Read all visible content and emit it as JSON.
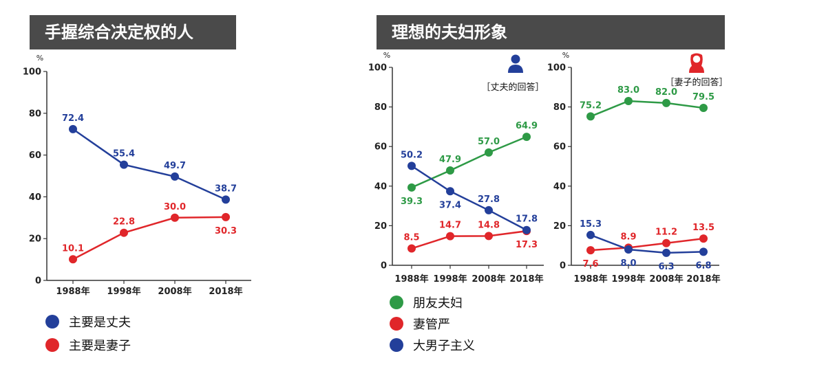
{
  "left_panel": {
    "title": "手握综合决定权的人"
  },
  "right_panel": {
    "title": "理想的夫妇形象"
  },
  "colors": {
    "blue": "#233f9a",
    "red": "#e0262a",
    "green": "#2e9a46",
    "header_bg": "#4a4a4a"
  },
  "chart_data": [
    {
      "type": "line",
      "title": "手握综合决定权的人",
      "unit": "%",
      "categories": [
        "1988年",
        "1998年",
        "2008年",
        "2018年"
      ],
      "ylim": [
        0,
        100
      ],
      "yticks": [
        0,
        20,
        40,
        60,
        80,
        100
      ],
      "series": [
        {
          "name": "主要是丈夫",
          "color": "#233f9a",
          "values": [
            72.4,
            55.4,
            49.7,
            38.7
          ],
          "labels": [
            "72.4",
            "55.4",
            "49.7",
            "38.7"
          ],
          "label_pos": [
            "above",
            "above",
            "above",
            "above"
          ]
        },
        {
          "name": "主要是妻子",
          "color": "#e0262a",
          "values": [
            10.1,
            22.8,
            30.0,
            30.3
          ],
          "labels": [
            "10.1",
            "22.8",
            "30.0",
            "30.3"
          ],
          "label_pos": [
            "above",
            "above",
            "above",
            "below"
          ]
        }
      ],
      "legend": [
        "主要是丈夫",
        "主要是妻子"
      ]
    },
    {
      "type": "line",
      "respondent": "［丈夫的回答］",
      "respondent_icon": "male-person-icon",
      "unit": "%",
      "categories": [
        "1988年",
        "1998年",
        "2008年",
        "2018年"
      ],
      "ylim": [
        0,
        100
      ],
      "yticks": [
        0,
        20,
        40,
        60,
        80,
        100
      ],
      "series": [
        {
          "name": "朋友夫妇",
          "color": "#2e9a46",
          "values": [
            39.3,
            47.9,
            57.0,
            64.9
          ],
          "labels": [
            "39.3",
            "47.9",
            "57.0",
            "64.9"
          ],
          "label_pos": [
            "below",
            "above",
            "above",
            "above"
          ]
        },
        {
          "name": "妻管严",
          "color": "#e0262a",
          "values": [
            8.5,
            14.7,
            14.8,
            17.3
          ],
          "labels": [
            "8.5",
            "14.7",
            "14.8",
            "17.3"
          ],
          "label_pos": [
            "above",
            "above",
            "above",
            "below"
          ]
        },
        {
          "name": "大男子主义",
          "color": "#233f9a",
          "values": [
            50.2,
            37.4,
            27.8,
            17.8
          ],
          "labels": [
            "50.2",
            "37.4",
            "27.8",
            "17.8"
          ],
          "label_pos": [
            "above",
            "below",
            "above",
            "above"
          ]
        }
      ]
    },
    {
      "type": "line",
      "respondent": "［妻子的回答］",
      "respondent_icon": "female-person-icon",
      "unit": "%",
      "categories": [
        "1988年",
        "1998年",
        "2008年",
        "2018年"
      ],
      "ylim": [
        0,
        100
      ],
      "yticks": [
        0,
        20,
        40,
        60,
        80,
        100
      ],
      "series": [
        {
          "name": "朋友夫妇",
          "color": "#2e9a46",
          "values": [
            75.2,
            83.0,
            82.0,
            79.5
          ],
          "labels": [
            "75.2",
            "83.0",
            "82.0",
            "79.5"
          ],
          "label_pos": [
            "above",
            "above",
            "above",
            "above"
          ]
        },
        {
          "name": "妻管严",
          "color": "#e0262a",
          "values": [
            7.6,
            8.9,
            11.2,
            13.5
          ],
          "labels": [
            "7.6",
            "8.9",
            "11.2",
            "13.5"
          ],
          "label_pos": [
            "below",
            "above",
            "above",
            "above"
          ]
        },
        {
          "name": "大男子主义",
          "color": "#233f9a",
          "values": [
            15.3,
            8.0,
            6.3,
            6.8
          ],
          "labels": [
            "15.3",
            "8.0",
            "6.3",
            "6.8"
          ],
          "label_pos": [
            "above",
            "below",
            "below",
            "below"
          ]
        }
      ]
    }
  ],
  "right_legend": [
    "朋友夫妇",
    "妻管严",
    "大男子主义"
  ]
}
